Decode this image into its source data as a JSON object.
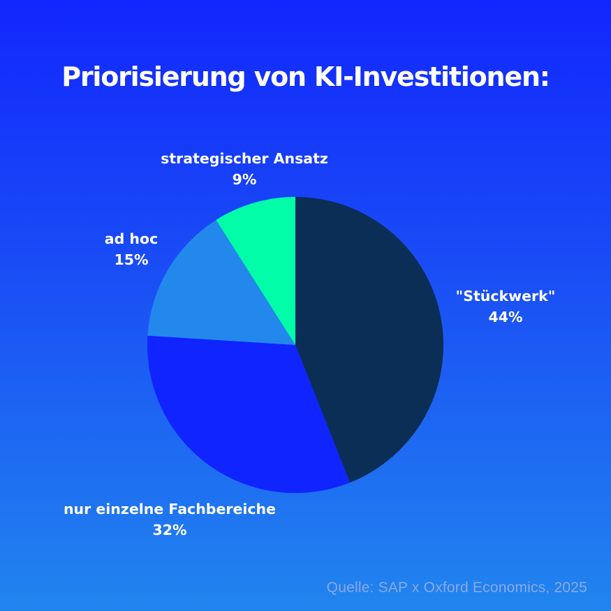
{
  "title": "Priorisierung von KI-Investitionen:",
  "source": "Quelle: SAP x Oxford Economics, 2025",
  "colors": {
    "background_top": "#1226fd",
    "background_bottom": "#2185ee",
    "stueckwerk": "#0a2e56",
    "fachbereiche": "#1024ff",
    "ad_hoc": "#2388ec",
    "strategisch": "#02fda9",
    "source_text": "#8aa9e6"
  },
  "labels": {
    "stueckwerk": {
      "name": "\"Stückwerk\"",
      "value": "44%"
    },
    "fachbereiche": {
      "name": "nur einzelne Fachbereiche",
      "value": "32%"
    },
    "ad_hoc": {
      "name": "ad hoc",
      "value": "15%"
    },
    "strategisch": {
      "name": "strategischer Ansatz",
      "value": "9%"
    }
  },
  "chart_data": {
    "type": "pie",
    "title": "Priorisierung von KI-Investitionen:",
    "categories": [
      "\"Stückwerk\"",
      "nur einzelne Fachbereiche",
      "ad hoc",
      "strategischer Ansatz"
    ],
    "values": [
      44,
      32,
      15,
      9
    ],
    "unit": "%",
    "colors": [
      "#0a2e56",
      "#1024ff",
      "#2388ec",
      "#02fda9"
    ],
    "start_angle": "12 o'clock",
    "direction": "clockwise",
    "legend": "none (direct labels)",
    "annotation": "Quelle: SAP x Oxford Economics, 2025"
  }
}
